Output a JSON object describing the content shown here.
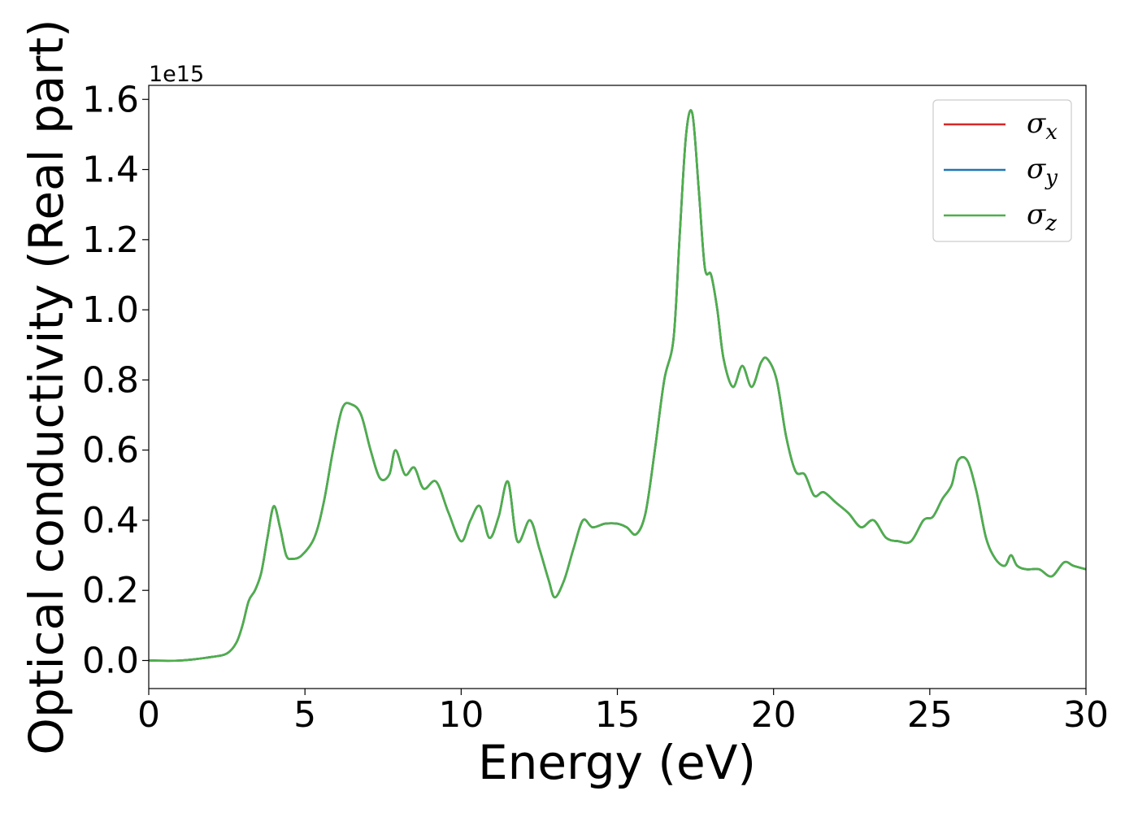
{
  "colors": {
    "sigma_x": "#d62728",
    "sigma_y": "#1f77b4",
    "sigma_z": "#4daf4a",
    "axes": "#000000",
    "legend_border": "#cccccc"
  },
  "chart_data": {
    "type": "line",
    "xlabel": "Energy (eV)",
    "ylabel": "Optical conductivity (Real part)",
    "y_offset_text": "1e15",
    "y_scale_factor": 1000000000000000.0,
    "xlim": [
      0,
      30
    ],
    "ylim": [
      -0.08,
      1.64
    ],
    "x_ticks": [
      0,
      5,
      10,
      15,
      20,
      25,
      30
    ],
    "x_tick_labels": [
      "0",
      "5",
      "10",
      "15",
      "20",
      "25",
      "30"
    ],
    "y_ticks": [
      0.0,
      0.2,
      0.4,
      0.6,
      0.8,
      1.0,
      1.2,
      1.4,
      1.6
    ],
    "y_tick_labels": [
      "0.0",
      "0.2",
      "0.4",
      "0.6",
      "0.8",
      "1.0",
      "1.2",
      "1.4",
      "1.6"
    ],
    "grid": false,
    "legend_position": "top-right",
    "legend": [
      {
        "key": "sigma_x",
        "symbol": "σ",
        "subscript": "x"
      },
      {
        "key": "sigma_y",
        "symbol": "σ",
        "subscript": "y"
      },
      {
        "key": "sigma_z",
        "symbol": "σ",
        "subscript": "z"
      }
    ],
    "x": [
      0.0,
      1.0,
      2.0,
      2.5,
      2.8,
      3.0,
      3.2,
      3.4,
      3.6,
      3.8,
      4.0,
      4.2,
      4.4,
      4.6,
      4.9,
      5.3,
      5.6,
      5.9,
      6.2,
      6.5,
      6.8,
      7.1,
      7.4,
      7.7,
      7.9,
      8.2,
      8.5,
      8.8,
      9.2,
      9.6,
      10.0,
      10.3,
      10.6,
      10.9,
      11.2,
      11.5,
      11.8,
      12.2,
      12.5,
      12.8,
      13.0,
      13.3,
      13.6,
      13.9,
      14.2,
      14.6,
      15.0,
      15.3,
      15.6,
      15.9,
      16.2,
      16.5,
      16.8,
      17.0,
      17.2,
      17.4,
      17.6,
      17.8,
      18.0,
      18.2,
      18.4,
      18.7,
      19.0,
      19.3,
      19.6,
      19.8,
      20.1,
      20.4,
      20.7,
      21.0,
      21.3,
      21.6,
      22.0,
      22.4,
      22.8,
      23.2,
      23.6,
      24.0,
      24.4,
      24.8,
      25.1,
      25.4,
      25.7,
      25.9,
      26.2,
      26.5,
      26.8,
      27.1,
      27.4,
      27.6,
      27.8,
      28.1,
      28.5,
      28.9,
      29.3,
      29.6,
      30.0
    ],
    "series": [
      {
        "name": "σx",
        "values": [
          0.0,
          0.0,
          0.01,
          0.02,
          0.05,
          0.1,
          0.17,
          0.2,
          0.25,
          0.35,
          0.44,
          0.38,
          0.3,
          0.29,
          0.3,
          0.35,
          0.45,
          0.6,
          0.72,
          0.73,
          0.7,
          0.6,
          0.52,
          0.53,
          0.6,
          0.53,
          0.55,
          0.49,
          0.51,
          0.42,
          0.34,
          0.4,
          0.44,
          0.35,
          0.41,
          0.51,
          0.34,
          0.4,
          0.32,
          0.23,
          0.18,
          0.23,
          0.32,
          0.4,
          0.38,
          0.39,
          0.39,
          0.38,
          0.36,
          0.42,
          0.6,
          0.8,
          0.92,
          1.22,
          1.5,
          1.56,
          1.35,
          1.12,
          1.1,
          1.0,
          0.86,
          0.78,
          0.84,
          0.78,
          0.85,
          0.86,
          0.8,
          0.64,
          0.54,
          0.53,
          0.47,
          0.48,
          0.45,
          0.42,
          0.38,
          0.4,
          0.35,
          0.34,
          0.34,
          0.4,
          0.41,
          0.46,
          0.5,
          0.57,
          0.57,
          0.48,
          0.35,
          0.29,
          0.27,
          0.3,
          0.27,
          0.26,
          0.26,
          0.24,
          0.28,
          0.27,
          0.26
        ]
      },
      {
        "name": "σy",
        "values": [
          0.0,
          0.0,
          0.01,
          0.02,
          0.05,
          0.1,
          0.17,
          0.2,
          0.25,
          0.35,
          0.44,
          0.38,
          0.3,
          0.29,
          0.3,
          0.35,
          0.45,
          0.6,
          0.72,
          0.73,
          0.7,
          0.6,
          0.52,
          0.53,
          0.6,
          0.53,
          0.55,
          0.49,
          0.51,
          0.42,
          0.34,
          0.4,
          0.44,
          0.35,
          0.41,
          0.51,
          0.34,
          0.4,
          0.32,
          0.23,
          0.18,
          0.23,
          0.32,
          0.4,
          0.38,
          0.39,
          0.39,
          0.38,
          0.36,
          0.42,
          0.6,
          0.8,
          0.92,
          1.22,
          1.5,
          1.56,
          1.35,
          1.12,
          1.1,
          1.0,
          0.86,
          0.78,
          0.84,
          0.78,
          0.85,
          0.86,
          0.8,
          0.64,
          0.54,
          0.53,
          0.47,
          0.48,
          0.45,
          0.42,
          0.38,
          0.4,
          0.35,
          0.34,
          0.34,
          0.4,
          0.41,
          0.46,
          0.5,
          0.57,
          0.57,
          0.48,
          0.35,
          0.29,
          0.27,
          0.3,
          0.27,
          0.26,
          0.26,
          0.24,
          0.28,
          0.27,
          0.26
        ]
      },
      {
        "name": "σz",
        "values": [
          0.0,
          0.0,
          0.01,
          0.02,
          0.05,
          0.1,
          0.17,
          0.2,
          0.25,
          0.35,
          0.44,
          0.38,
          0.3,
          0.29,
          0.3,
          0.35,
          0.45,
          0.6,
          0.72,
          0.73,
          0.7,
          0.6,
          0.52,
          0.53,
          0.6,
          0.53,
          0.55,
          0.49,
          0.51,
          0.42,
          0.34,
          0.4,
          0.44,
          0.35,
          0.41,
          0.51,
          0.34,
          0.4,
          0.32,
          0.23,
          0.18,
          0.23,
          0.32,
          0.4,
          0.38,
          0.39,
          0.39,
          0.38,
          0.36,
          0.42,
          0.6,
          0.8,
          0.92,
          1.22,
          1.5,
          1.56,
          1.35,
          1.12,
          1.1,
          1.0,
          0.86,
          0.78,
          0.84,
          0.78,
          0.85,
          0.86,
          0.8,
          0.64,
          0.54,
          0.53,
          0.47,
          0.48,
          0.45,
          0.42,
          0.38,
          0.4,
          0.35,
          0.34,
          0.34,
          0.4,
          0.41,
          0.46,
          0.5,
          0.57,
          0.57,
          0.48,
          0.35,
          0.29,
          0.27,
          0.3,
          0.27,
          0.26,
          0.26,
          0.24,
          0.28,
          0.27,
          0.26
        ]
      }
    ]
  }
}
